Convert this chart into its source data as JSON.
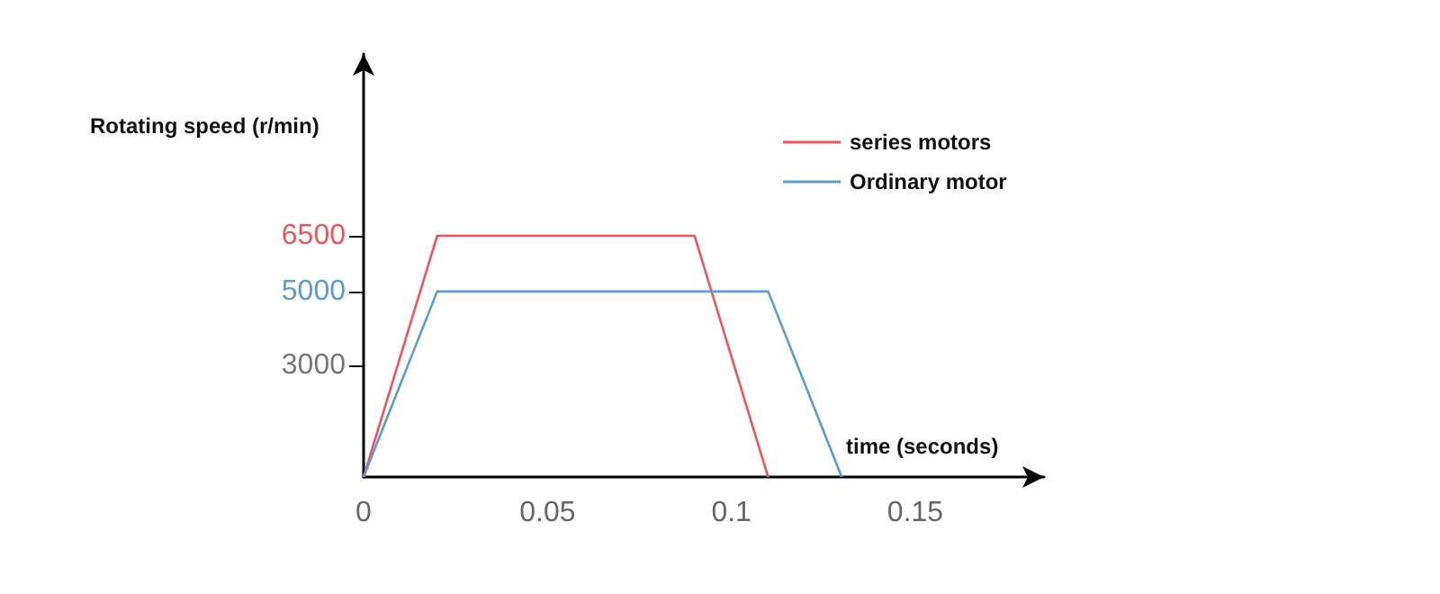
{
  "chart_data": {
    "type": "line",
    "xlabel": "time (seconds)",
    "ylabel": "Rotating speed (r/min)",
    "series": [
      {
        "name": "series motors",
        "color": "#f0545a",
        "x": [
          0,
          0.02,
          0.09,
          0.11
        ],
        "values": [
          0,
          6500,
          6500,
          0
        ]
      },
      {
        "name": "Ordinary motor",
        "color": "#5b9bd5",
        "x": [
          0,
          0.02,
          0.11,
          0.13
        ],
        "values": [
          0,
          5000,
          5000,
          0
        ]
      }
    ],
    "xlim": [
      0,
      0.185
    ],
    "xticks": [
      0,
      0.05,
      0.1,
      0.15
    ],
    "ylim": [
      0,
      11400
    ],
    "yticks": [
      3000,
      5000,
      6500
    ],
    "grid": false,
    "legend": "top right",
    "marker": "none",
    "line_style": "solid"
  }
}
